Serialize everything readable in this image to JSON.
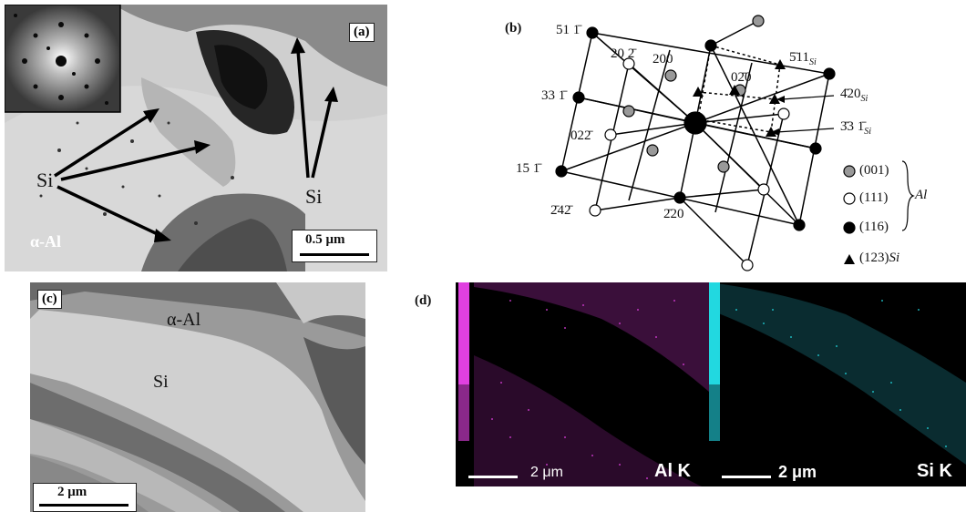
{
  "panel_a": {
    "tag": "(a)",
    "si_left": "Si",
    "si_right": "Si",
    "matrix": "α-Al",
    "scale": "0.5 μm"
  },
  "panel_b": {
    "tag": "(b)",
    "labels": {
      "l51": "51 1̄",
      "l202": "20 2̄",
      "l200": "200",
      "l020": "02̄0",
      "l511": "5̄11",
      "l511s": "Si",
      "l331": "33 1̄",
      "l420": "4̄20",
      "l420s": "Si",
      "l022": "022̄",
      "l331si": "3̄3 1̄",
      "l331sis": "Si",
      "l151": "15 1̄",
      "l242": "2̄42̄",
      "l220": "2̄20"
    },
    "legend": {
      "g001": "(001)",
      "g111": "(111)",
      "g116": "(116)",
      "al": "Al",
      "g123": "(123)",
      "si": "Si"
    }
  },
  "panel_c": {
    "tag": "(c)",
    "matrix": "α-Al",
    "si": "Si",
    "scale": "2  μm"
  },
  "panel_d": {
    "tag": "(d)",
    "scale_left": "2 μm",
    "element_left": "Al  K",
    "scale_right": "2 μm",
    "element_right": "Si  K"
  },
  "colors": {
    "al_map": "#e040e0",
    "si_map": "#22d8e0"
  }
}
